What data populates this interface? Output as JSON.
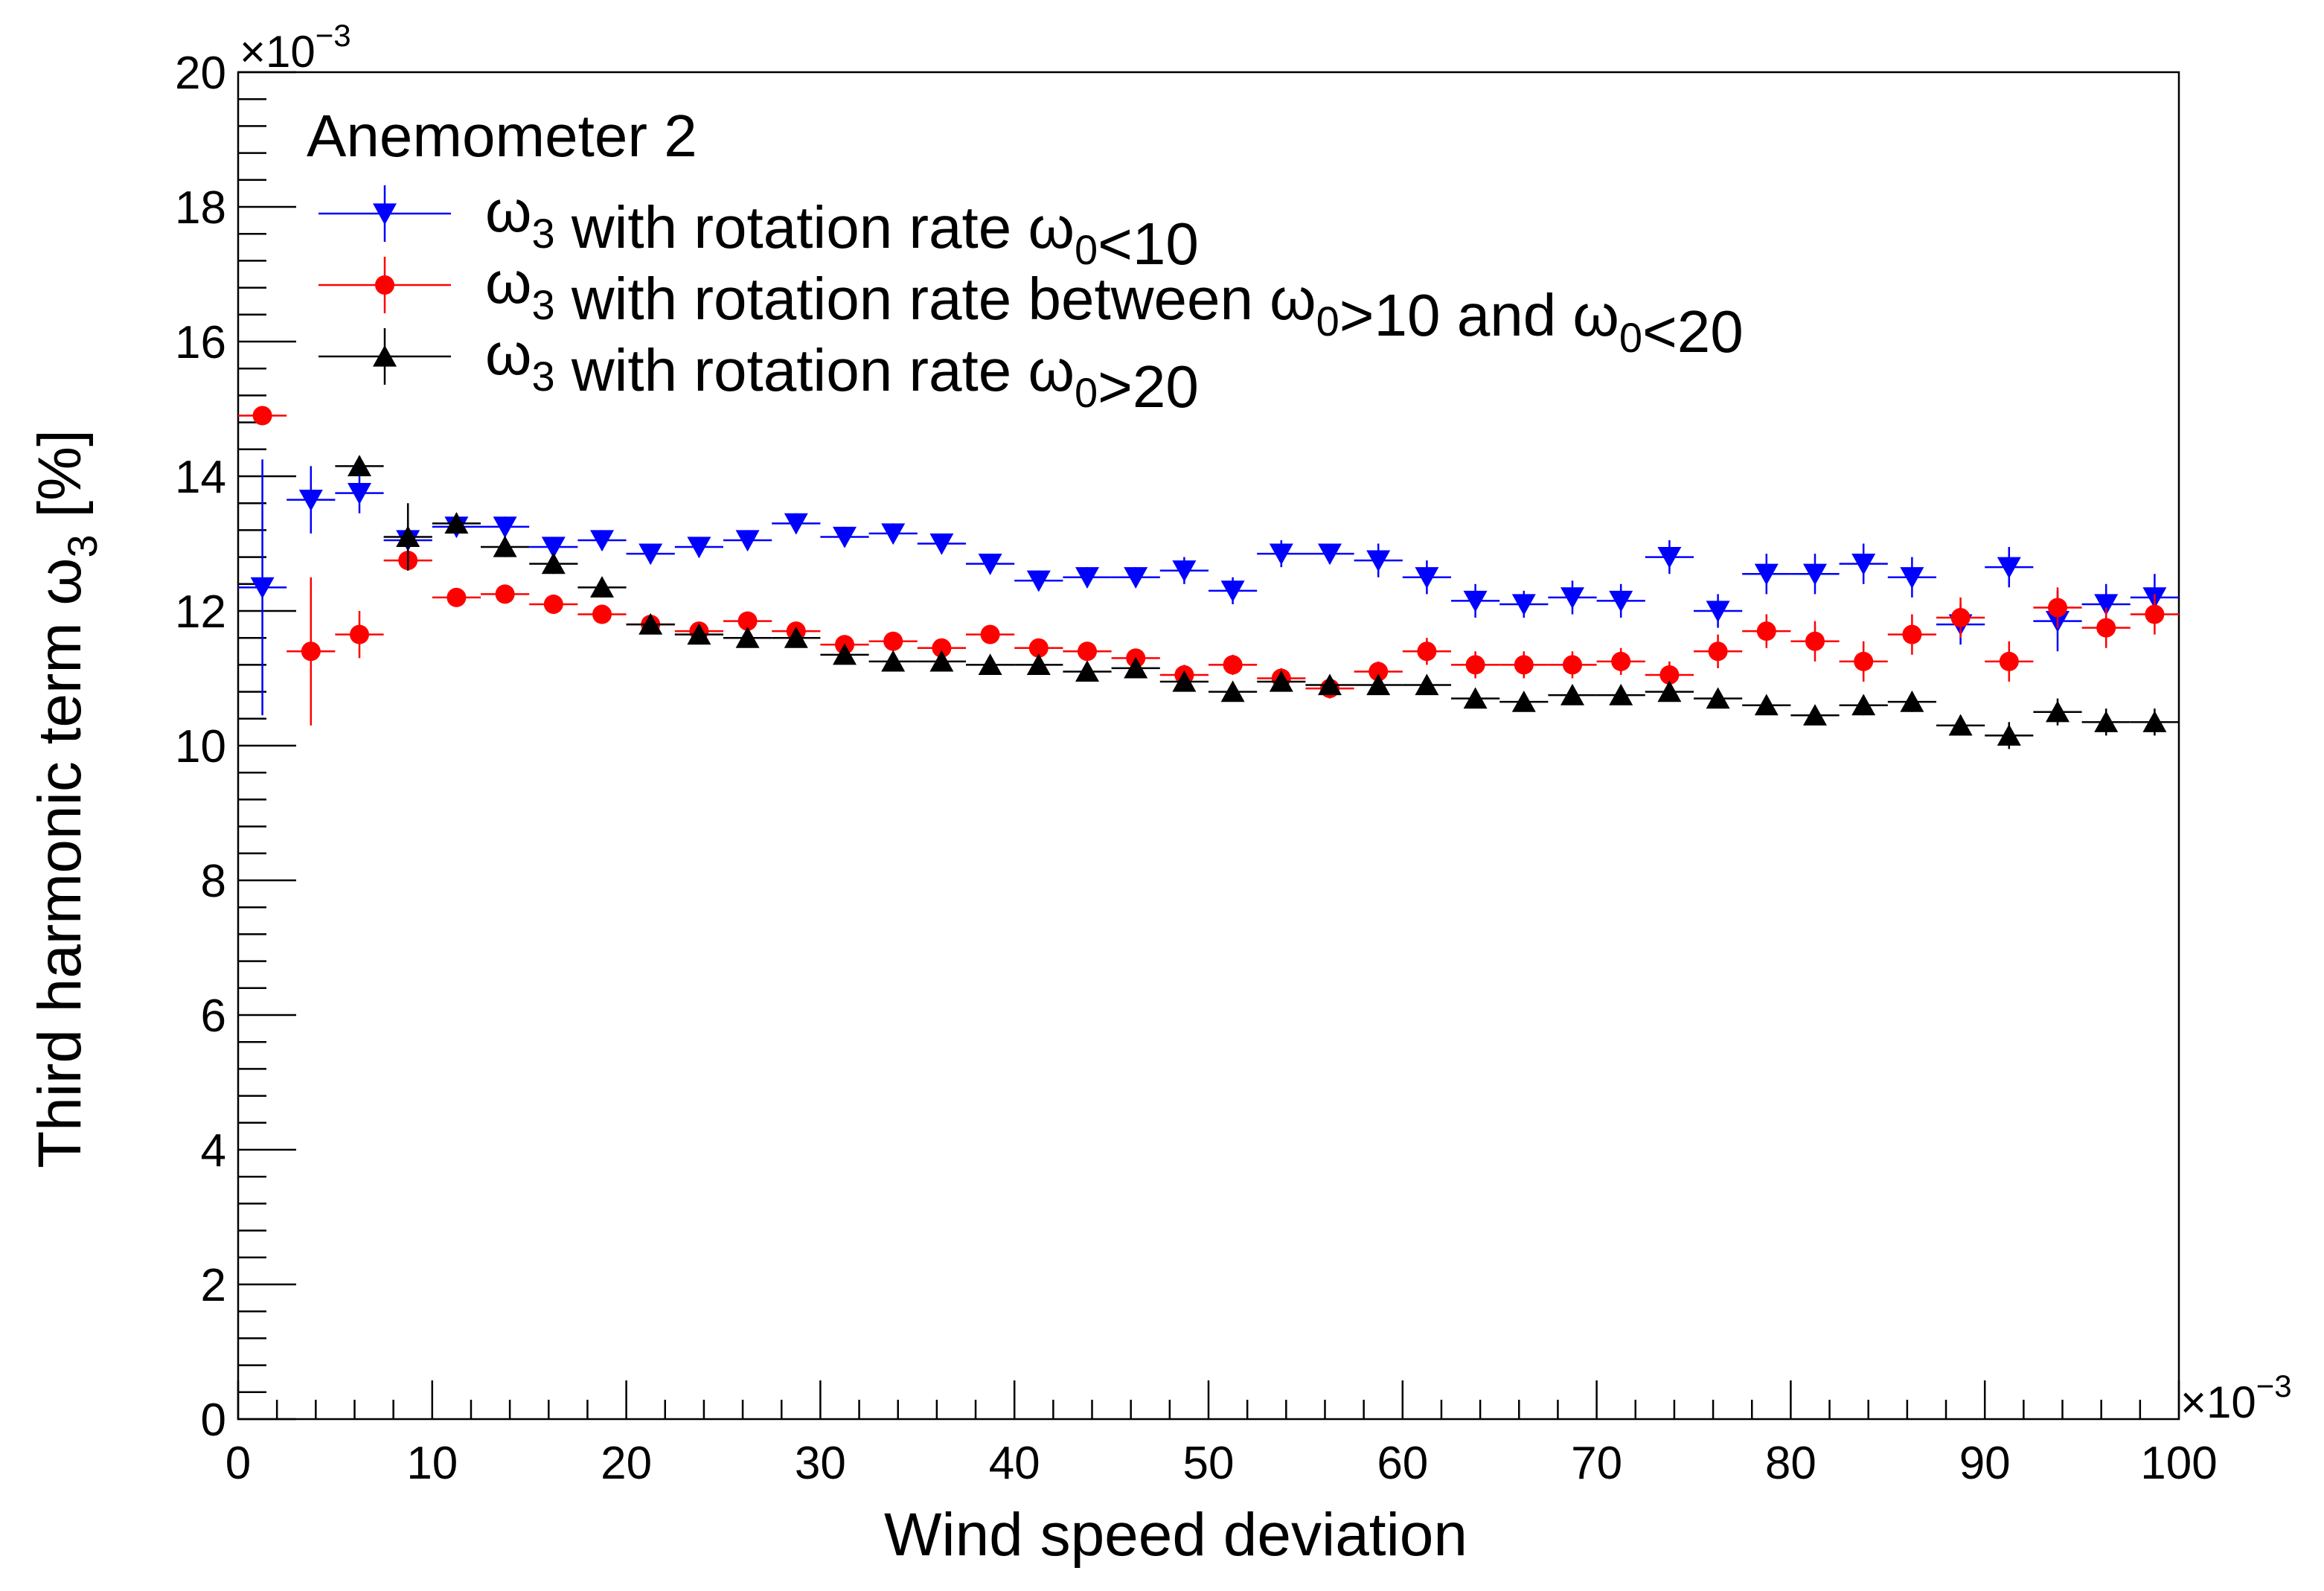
{
  "chart_data": {
    "type": "scatter",
    "title": "",
    "xlabel": "Wind speed deviation",
    "ylabel_main": "Third harmonic term ω",
    "ylabel_sub": "3",
    "ylabel_unit": " [%]",
    "x_exponent_base": "×10",
    "x_exponent_power": "−3",
    "y_exponent_base": "×10",
    "y_exponent_power": "−3",
    "xlim": [
      0,
      100
    ],
    "ylim": [
      0,
      20
    ],
    "x_ticks": [
      0,
      10,
      20,
      30,
      40,
      50,
      60,
      70,
      80,
      90,
      100
    ],
    "y_ticks": [
      0,
      2,
      4,
      6,
      8,
      10,
      12,
      14,
      16,
      18,
      20
    ],
    "grid": false,
    "legend_position": "top-left",
    "legend_header": "Anemometer 2",
    "bin_half_width": 1.25,
    "series": [
      {
        "label_parts": [
          {
            "t": "ω",
            "sub": "3"
          },
          {
            "t": " with rotation rate ω",
            "sub": "0"
          },
          {
            "t": "<10",
            "sub": ""
          }
        ],
        "color": "#0000ff",
        "marker": "triangle-down",
        "points": [
          [
            1.25,
            12.35,
            1.9
          ],
          [
            3.75,
            13.65,
            0.5
          ],
          [
            6.25,
            13.75,
            0.3
          ],
          [
            8.75,
            13.05,
            0.3
          ],
          [
            11.25,
            13.25,
            0.15
          ],
          [
            13.75,
            13.25,
            0.15
          ],
          [
            16.25,
            12.95,
            0.15
          ],
          [
            18.75,
            13.05,
            0.15
          ],
          [
            21.25,
            12.85,
            0.15
          ],
          [
            23.75,
            12.95,
            0.15
          ],
          [
            26.25,
            13.05,
            0.15
          ],
          [
            28.75,
            13.3,
            0.15
          ],
          [
            31.25,
            13.1,
            0.15
          ],
          [
            33.75,
            13.15,
            0.15
          ],
          [
            36.25,
            13.0,
            0.15
          ],
          [
            38.75,
            12.7,
            0.15
          ],
          [
            41.25,
            12.45,
            0.15
          ],
          [
            43.75,
            12.5,
            0.15
          ],
          [
            46.25,
            12.5,
            0.15
          ],
          [
            48.75,
            12.6,
            0.2
          ],
          [
            51.25,
            12.3,
            0.2
          ],
          [
            53.75,
            12.85,
            0.2
          ],
          [
            56.25,
            12.85,
            0.15
          ],
          [
            58.75,
            12.75,
            0.25
          ],
          [
            61.25,
            12.5,
            0.25
          ],
          [
            63.75,
            12.15,
            0.25
          ],
          [
            66.25,
            12.1,
            0.2
          ],
          [
            68.75,
            12.2,
            0.25
          ],
          [
            71.25,
            12.15,
            0.25
          ],
          [
            73.75,
            12.8,
            0.25
          ],
          [
            76.25,
            12.0,
            0.25
          ],
          [
            78.75,
            12.55,
            0.3
          ],
          [
            81.25,
            12.55,
            0.3
          ],
          [
            83.75,
            12.7,
            0.3
          ],
          [
            86.25,
            12.5,
            0.3
          ],
          [
            88.75,
            11.8,
            0.3
          ],
          [
            91.25,
            12.65,
            0.3
          ],
          [
            93.75,
            11.85,
            0.45
          ],
          [
            96.25,
            12.1,
            0.3
          ],
          [
            98.75,
            12.2,
            0.35
          ]
        ]
      },
      {
        "label_parts": [
          {
            "t": "ω",
            "sub": "3"
          },
          {
            "t": " with rotation rate between ω",
            "sub": "0"
          },
          {
            "t": ">10 and ω",
            "sub": "0"
          },
          {
            "t": "<20",
            "sub": ""
          }
        ],
        "color": "#ff0000",
        "marker": "circle",
        "points": [
          [
            1.25,
            14.9,
            0.1
          ],
          [
            3.75,
            11.4,
            1.1
          ],
          [
            6.25,
            11.65,
            0.35
          ],
          [
            8.75,
            12.75,
            0.15
          ],
          [
            11.25,
            12.2,
            0.1
          ],
          [
            13.75,
            12.25,
            0.1
          ],
          [
            16.25,
            12.1,
            0.1
          ],
          [
            18.75,
            11.95,
            0.1
          ],
          [
            21.25,
            11.8,
            0.1
          ],
          [
            23.75,
            11.7,
            0.1
          ],
          [
            26.25,
            11.85,
            0.1
          ],
          [
            28.75,
            11.7,
            0.1
          ],
          [
            31.25,
            11.5,
            0.1
          ],
          [
            33.75,
            11.55,
            0.1
          ],
          [
            36.25,
            11.45,
            0.1
          ],
          [
            38.75,
            11.65,
            0.1
          ],
          [
            41.25,
            11.45,
            0.1
          ],
          [
            43.75,
            11.4,
            0.1
          ],
          [
            46.25,
            11.3,
            0.1
          ],
          [
            48.75,
            11.05,
            0.15
          ],
          [
            51.25,
            11.2,
            0.15
          ],
          [
            53.75,
            11.0,
            0.15
          ],
          [
            56.25,
            10.85,
            0.15
          ],
          [
            58.75,
            11.1,
            0.15
          ],
          [
            61.25,
            11.4,
            0.2
          ],
          [
            63.75,
            11.2,
            0.2
          ],
          [
            66.25,
            11.2,
            0.2
          ],
          [
            68.75,
            11.2,
            0.2
          ],
          [
            71.25,
            11.25,
            0.2
          ],
          [
            73.75,
            11.05,
            0.2
          ],
          [
            76.25,
            11.4,
            0.25
          ],
          [
            78.75,
            11.7,
            0.25
          ],
          [
            81.25,
            11.55,
            0.3
          ],
          [
            83.75,
            11.25,
            0.3
          ],
          [
            86.25,
            11.65,
            0.3
          ],
          [
            88.75,
            11.9,
            0.3
          ],
          [
            91.25,
            11.25,
            0.3
          ],
          [
            93.75,
            12.05,
            0.3
          ],
          [
            96.25,
            11.75,
            0.3
          ],
          [
            98.75,
            11.95,
            0.3
          ]
        ]
      },
      {
        "label_parts": [
          {
            "t": "ω",
            "sub": "3"
          },
          {
            "t": " with rotation rate ω",
            "sub": "0"
          },
          {
            "t": ">20",
            "sub": ""
          }
        ],
        "color": "#000000",
        "marker": "triangle-up",
        "points": [
          [
            6.25,
            14.15,
            0.15
          ],
          [
            8.75,
            13.1,
            0.5
          ],
          [
            11.25,
            13.3,
            0.15
          ],
          [
            13.75,
            12.95,
            0.15
          ],
          [
            16.25,
            12.7,
            0.15
          ],
          [
            18.75,
            12.35,
            0.15
          ],
          [
            21.25,
            11.8,
            0.1
          ],
          [
            23.75,
            11.65,
            0.1
          ],
          [
            26.25,
            11.6,
            0.1
          ],
          [
            28.75,
            11.6,
            0.1
          ],
          [
            31.25,
            11.35,
            0.1
          ],
          [
            33.75,
            11.25,
            0.1
          ],
          [
            36.25,
            11.25,
            0.1
          ],
          [
            38.75,
            11.2,
            0.1
          ],
          [
            41.25,
            11.2,
            0.1
          ],
          [
            43.75,
            11.1,
            0.1
          ],
          [
            46.25,
            11.15,
            0.1
          ],
          [
            48.75,
            10.95,
            0.1
          ],
          [
            51.25,
            10.8,
            0.1
          ],
          [
            53.75,
            10.95,
            0.1
          ],
          [
            56.25,
            10.9,
            0.1
          ],
          [
            58.75,
            10.9,
            0.1
          ],
          [
            61.25,
            10.9,
            0.1
          ],
          [
            63.75,
            10.7,
            0.1
          ],
          [
            66.25,
            10.65,
            0.1
          ],
          [
            68.75,
            10.75,
            0.1
          ],
          [
            71.25,
            10.75,
            0.1
          ],
          [
            73.75,
            10.8,
            0.1
          ],
          [
            76.25,
            10.7,
            0.1
          ],
          [
            78.75,
            10.6,
            0.1
          ],
          [
            81.25,
            10.45,
            0.1
          ],
          [
            83.75,
            10.6,
            0.15
          ],
          [
            86.25,
            10.65,
            0.15
          ],
          [
            88.75,
            10.3,
            0.15
          ],
          [
            91.25,
            10.15,
            0.2
          ],
          [
            93.75,
            10.5,
            0.2
          ],
          [
            96.25,
            10.35,
            0.2
          ],
          [
            98.75,
            10.35,
            0.2
          ]
        ]
      }
    ]
  }
}
